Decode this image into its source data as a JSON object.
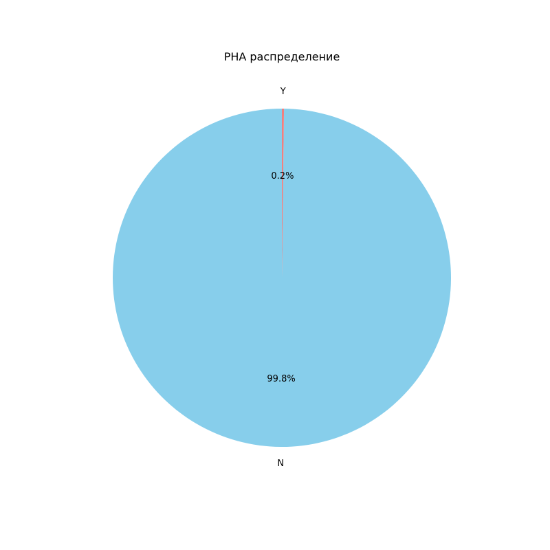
{
  "chart_data": {
    "type": "pie",
    "title": "PHA распределение",
    "slices": [
      {
        "label": "N",
        "value": 99.8,
        "pct_label": "99.8%",
        "color": "#87ceeb"
      },
      {
        "label": "Y",
        "value": 0.2,
        "pct_label": "0.2%",
        "color": "#f08080"
      }
    ],
    "start_angle_deg": 90,
    "direction": "counterclockwise",
    "legend": "none"
  }
}
